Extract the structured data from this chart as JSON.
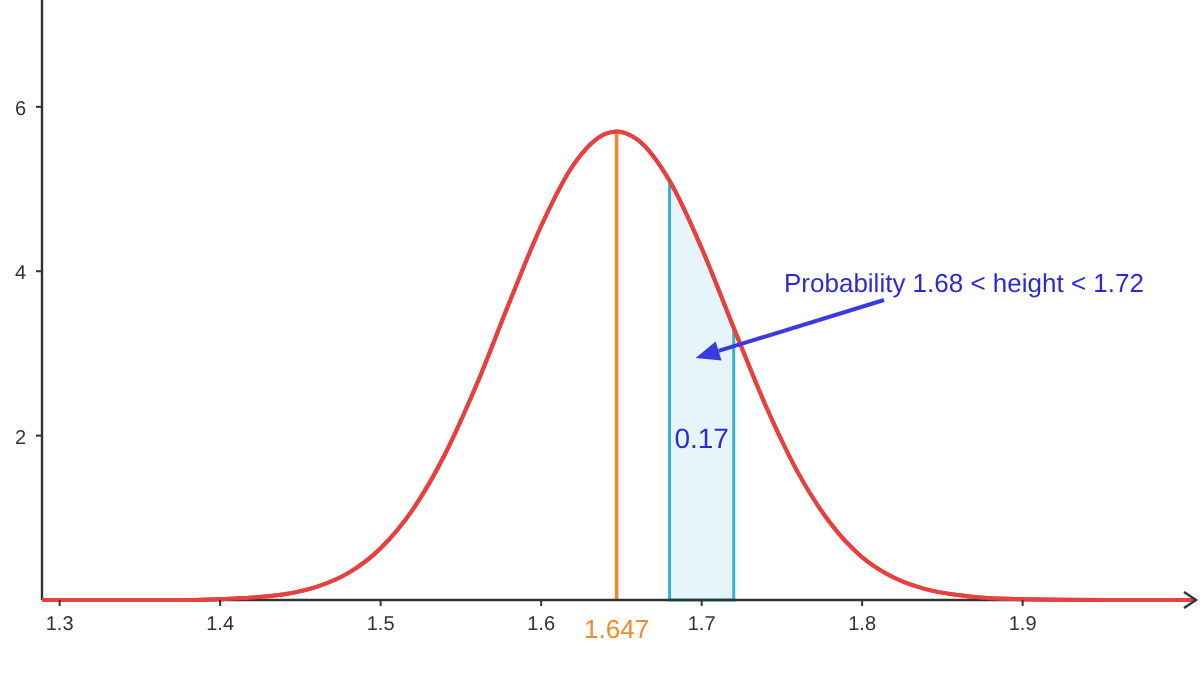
{
  "chart_data": {
    "type": "line",
    "xlim": [
      1.289,
      2.008
    ],
    "ylim": [
      0,
      7.3
    ],
    "xticks": [
      1.3,
      1.4,
      1.5,
      1.6,
      1.7,
      1.8,
      1.9
    ],
    "yticks": [
      2,
      4,
      6
    ],
    "grid": false,
    "marker": "none",
    "line_style": "solid",
    "series": [
      {
        "type": "area",
        "color": "#3ab0d0",
        "x": [
          1.68,
          1.69,
          1.7,
          1.71,
          1.72
        ],
        "values": [
          5.1,
          4.72,
          4.28,
          3.8,
          3.31
        ]
      },
      {
        "color": "#e8403f",
        "x": [
          1.289,
          1.3,
          1.35,
          1.38,
          1.4,
          1.42,
          1.44,
          1.46,
          1.48,
          1.5,
          1.52,
          1.54,
          1.56,
          1.58,
          1.6,
          1.62,
          1.64,
          1.647,
          1.66,
          1.68,
          1.7,
          1.72,
          1.74,
          1.76,
          1.78,
          1.8,
          1.82,
          1.84,
          1.86,
          1.88,
          1.9,
          1.95,
          2.008
        ],
        "values": [
          0,
          0,
          0,
          0,
          0.01,
          0.03,
          0.07,
          0.16,
          0.33,
          0.63,
          1.1,
          1.77,
          2.63,
          3.61,
          4.55,
          5.29,
          5.67,
          5.7,
          5.6,
          5.1,
          4.28,
          3.31,
          2.36,
          1.55,
          0.94,
          0.52,
          0.27,
          0.13,
          0.06,
          0.02,
          0.01,
          0,
          0
        ]
      }
    ],
    "ref_lines": [
      {
        "axis": "x",
        "value": 1.647,
        "label": "1.647",
        "color": "#f08a2c"
      }
    ],
    "annotations": [
      "0.17",
      "Probability 1.68 < height < 1.72"
    ]
  }
}
